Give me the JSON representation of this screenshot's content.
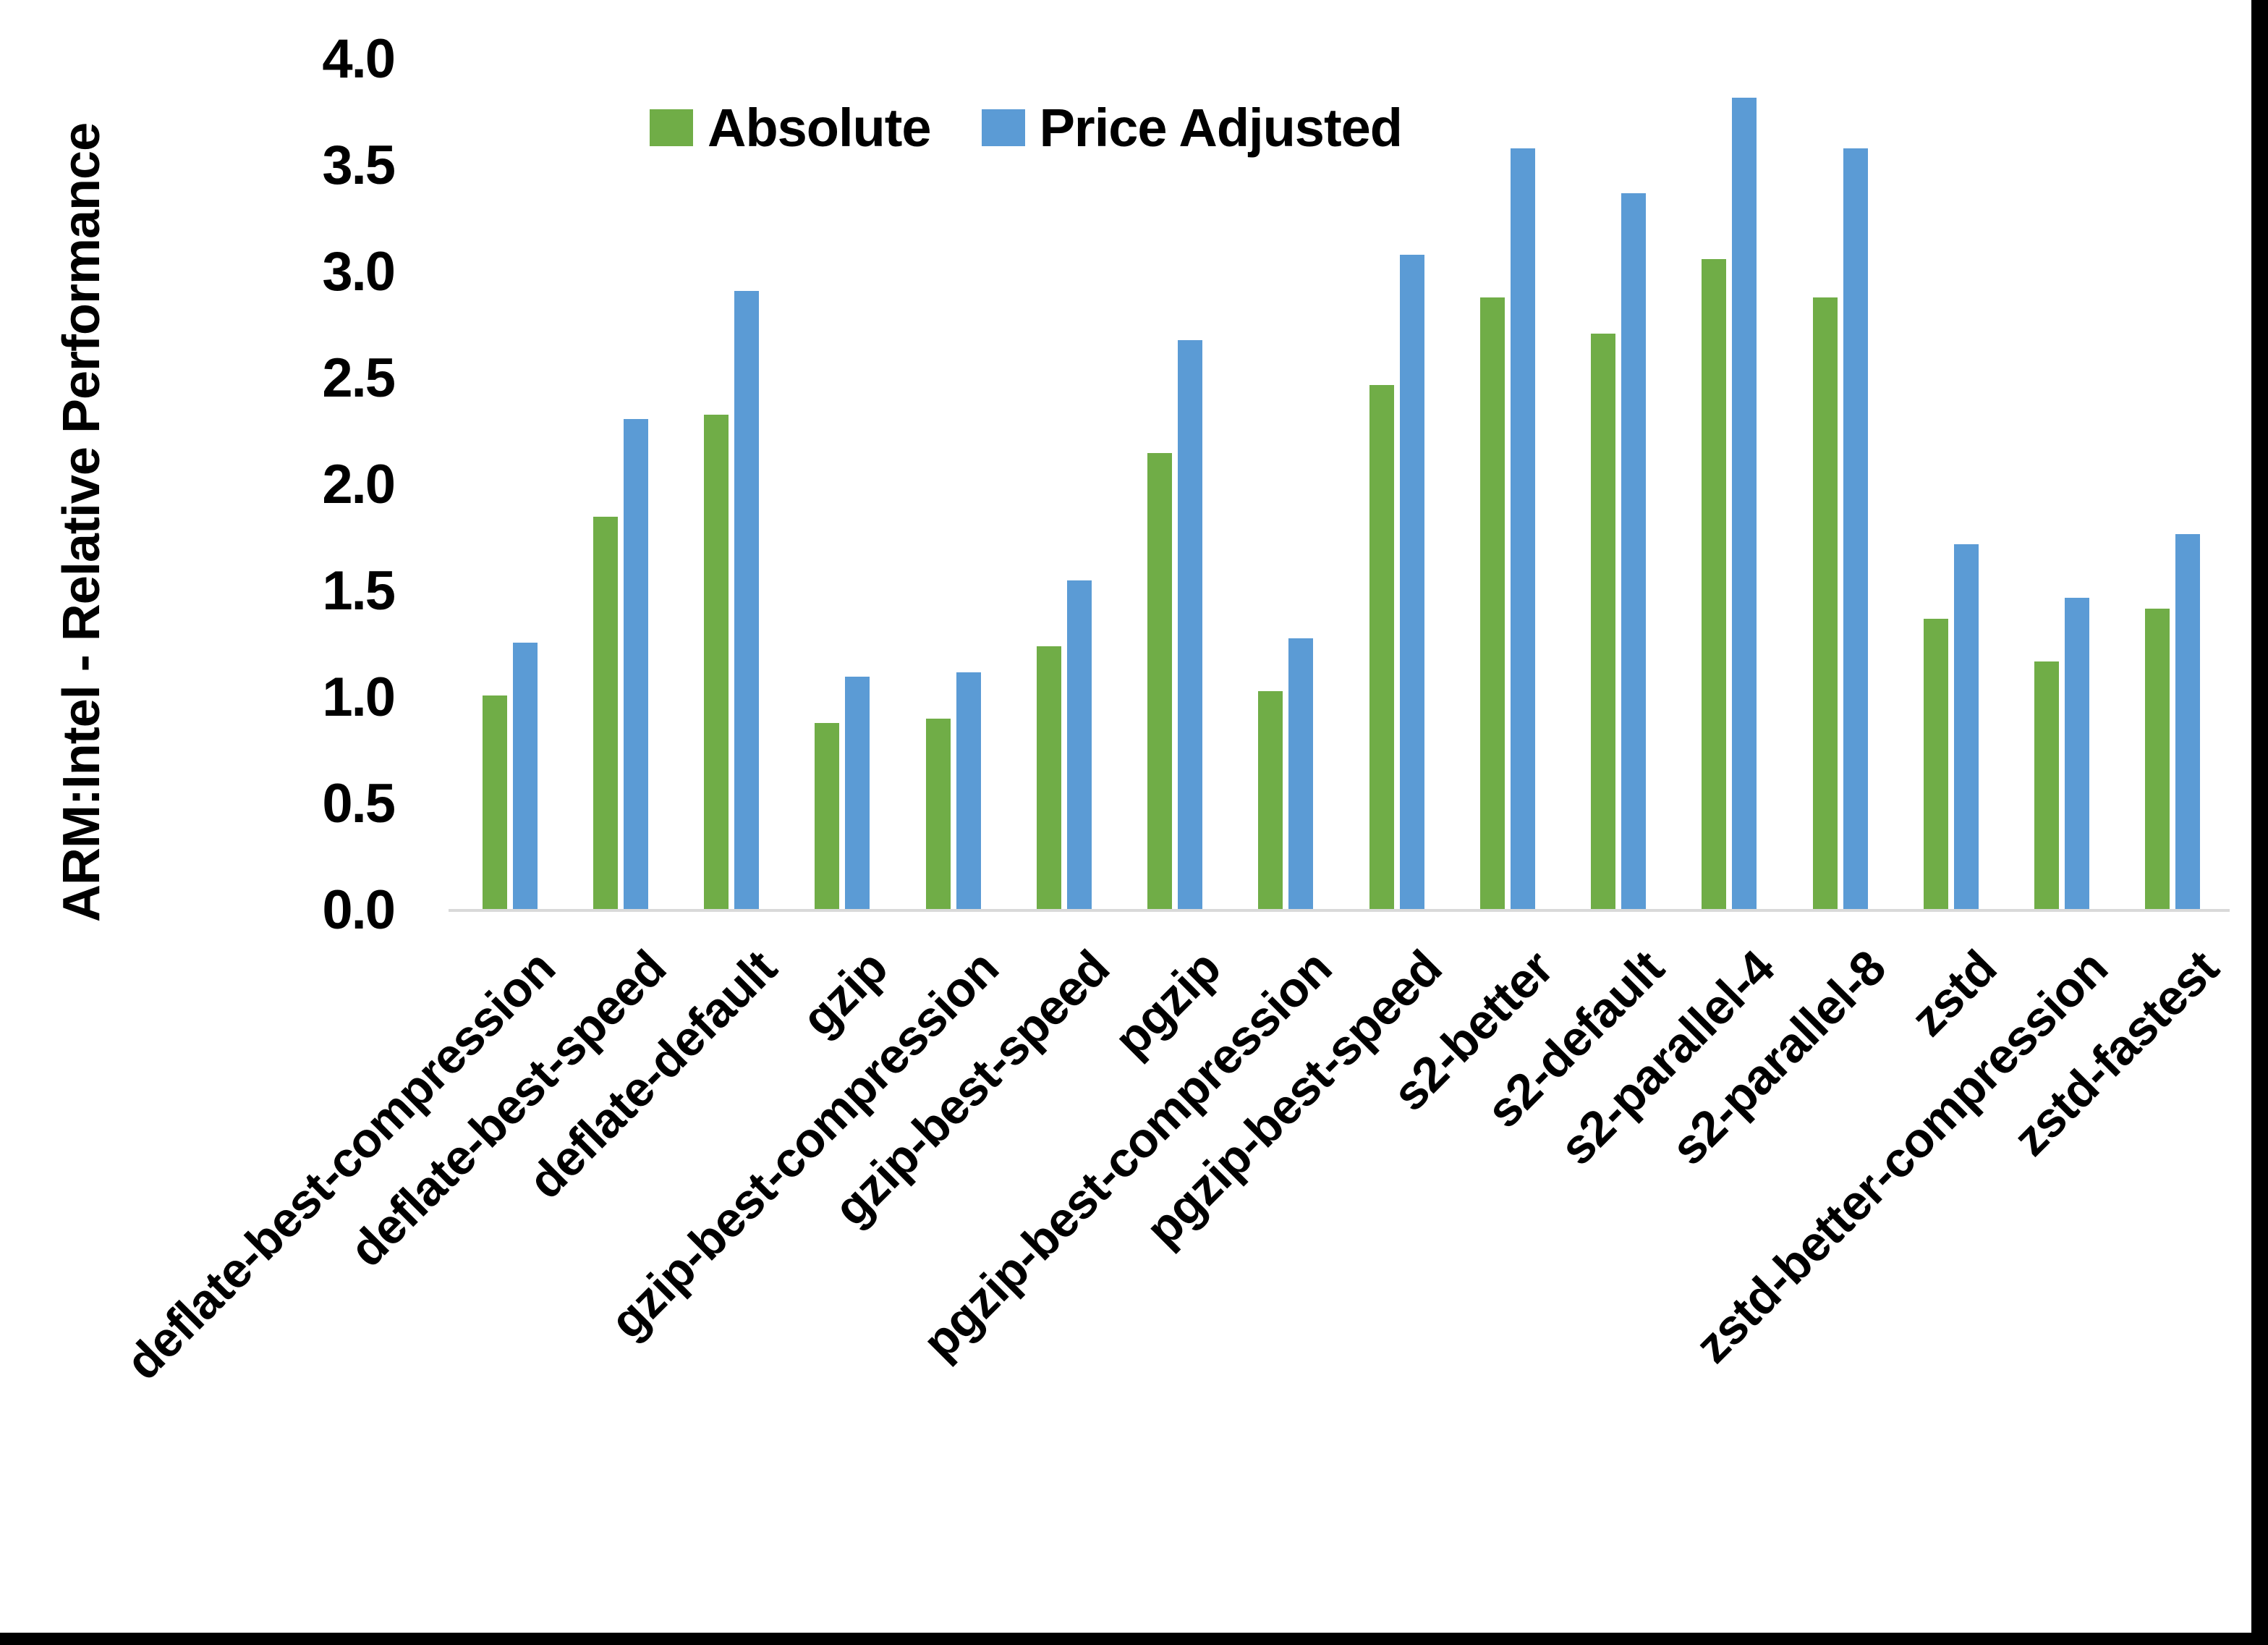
{
  "chart_data": {
    "type": "bar",
    "title": "",
    "xlabel": "",
    "ylabel": "ARM:Intel - Relative Performance",
    "ylim": [
      0.0,
      4.0
    ],
    "ytick_step": 0.5,
    "yticks": [
      "4.0",
      "3.5",
      "3.0",
      "2.5",
      "2.0",
      "1.5",
      "1.0",
      "0.5",
      "0.0"
    ],
    "grid": false,
    "legend_position": "top-center",
    "categories": [
      "deflate-best-compression",
      "deflate-best-speed",
      "deflate-default",
      "gzip",
      "gzip-best-compression",
      "gzip-best-speed",
      "pgzip",
      "pgzip-best-compression",
      "pgzip-best-speed",
      "s2-better",
      "s2-default",
      "s2-parallel-4",
      "s2-parallel-8",
      "zstd",
      "zstd-better-compression",
      "zstd-fastest"
    ],
    "series": [
      {
        "name": "Absolute",
        "slug": "absolute",
        "color": "#70AD47",
        "values": [
          1.01,
          1.85,
          2.33,
          0.88,
          0.9,
          1.24,
          2.15,
          1.03,
          2.47,
          2.88,
          2.71,
          3.06,
          2.88,
          1.37,
          1.17,
          1.42
        ]
      },
      {
        "name": "Price Adjusted",
        "slug": "price-adjusted",
        "color": "#5B9BD5",
        "values": [
          1.26,
          2.31,
          2.91,
          1.1,
          1.12,
          1.55,
          2.68,
          1.28,
          3.08,
          3.58,
          3.37,
          3.82,
          3.58,
          1.72,
          1.47,
          1.77
        ]
      }
    ]
  },
  "colors": {
    "absolute": "#70AD47",
    "price_adjusted": "#5B9BD5",
    "axis_line": "#D9D9D9",
    "text": "#000000",
    "background": "#FFFFFF",
    "border": "#000000"
  }
}
